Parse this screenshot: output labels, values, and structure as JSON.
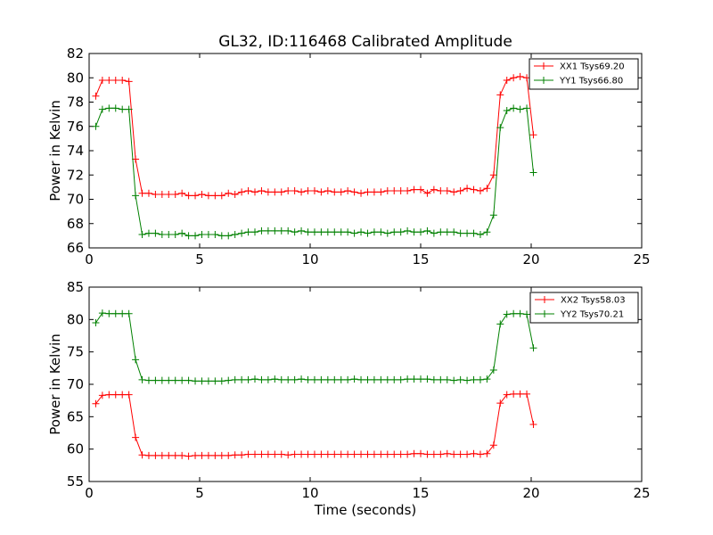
{
  "chart_data": [
    {
      "type": "line",
      "title": "GL32, ID:116468 Calibrated Amplitude",
      "xlabel": "",
      "ylabel": "Power in Kelvin",
      "xlim": [
        0,
        25
      ],
      "ylim": [
        66,
        82
      ],
      "xticks": [
        0,
        5,
        10,
        15,
        20,
        25
      ],
      "yticks": [
        66,
        68,
        70,
        72,
        74,
        76,
        78,
        80,
        82
      ],
      "grid": false,
      "legend_position": "top-right",
      "marker": "+",
      "series": [
        {
          "name": "XX1 Tsys69.20",
          "color": "#ff0000",
          "x": [
            0.3,
            0.6,
            0.9,
            1.2,
            1.5,
            1.8,
            2.1,
            2.4,
            2.7,
            3.0,
            3.3,
            3.6,
            3.9,
            4.2,
            4.5,
            4.8,
            5.1,
            5.4,
            5.7,
            6.0,
            6.3,
            6.6,
            6.9,
            7.2,
            7.5,
            7.8,
            8.1,
            8.4,
            8.7,
            9.0,
            9.3,
            9.6,
            9.9,
            10.2,
            10.5,
            10.8,
            11.1,
            11.4,
            11.7,
            12.0,
            12.3,
            12.6,
            12.9,
            13.2,
            13.5,
            13.8,
            14.1,
            14.4,
            14.7,
            15.0,
            15.3,
            15.6,
            15.9,
            16.2,
            16.5,
            16.8,
            17.1,
            17.4,
            17.7,
            18.0,
            18.3,
            18.6,
            18.9,
            19.2,
            19.5,
            19.8,
            20.1
          ],
          "y": [
            78.5,
            79.8,
            79.8,
            79.8,
            79.8,
            79.7,
            73.3,
            70.5,
            70.5,
            70.4,
            70.4,
            70.4,
            70.4,
            70.5,
            70.3,
            70.3,
            70.4,
            70.3,
            70.3,
            70.3,
            70.5,
            70.4,
            70.6,
            70.7,
            70.6,
            70.7,
            70.6,
            70.6,
            70.6,
            70.7,
            70.7,
            70.6,
            70.7,
            70.7,
            70.6,
            70.7,
            70.6,
            70.6,
            70.7,
            70.6,
            70.5,
            70.6,
            70.6,
            70.6,
            70.7,
            70.7,
            70.7,
            70.7,
            70.8,
            70.8,
            70.5,
            70.8,
            70.7,
            70.7,
            70.6,
            70.7,
            70.9,
            70.8,
            70.7,
            70.9,
            72.0,
            78.6,
            79.8,
            80.0,
            80.1,
            80.0,
            75.3
          ]
        },
        {
          "name": "YY1 Tsys66.80",
          "color": "#008000",
          "x": [
            0.3,
            0.6,
            0.9,
            1.2,
            1.5,
            1.8,
            2.1,
            2.4,
            2.7,
            3.0,
            3.3,
            3.6,
            3.9,
            4.2,
            4.5,
            4.8,
            5.1,
            5.4,
            5.7,
            6.0,
            6.3,
            6.6,
            6.9,
            7.2,
            7.5,
            7.8,
            8.1,
            8.4,
            8.7,
            9.0,
            9.3,
            9.6,
            9.9,
            10.2,
            10.5,
            10.8,
            11.1,
            11.4,
            11.7,
            12.0,
            12.3,
            12.6,
            12.9,
            13.2,
            13.5,
            13.8,
            14.1,
            14.4,
            14.7,
            15.0,
            15.3,
            15.6,
            15.9,
            16.2,
            16.5,
            16.8,
            17.1,
            17.4,
            17.7,
            18.0,
            18.3,
            18.6,
            18.9,
            19.2,
            19.5,
            19.8,
            20.1
          ],
          "y": [
            76.0,
            77.4,
            77.5,
            77.5,
            77.4,
            77.4,
            70.3,
            67.1,
            67.2,
            67.2,
            67.1,
            67.1,
            67.1,
            67.2,
            67.0,
            67.0,
            67.1,
            67.1,
            67.1,
            67.0,
            67.0,
            67.1,
            67.2,
            67.3,
            67.3,
            67.4,
            67.4,
            67.4,
            67.4,
            67.4,
            67.3,
            67.4,
            67.3,
            67.3,
            67.3,
            67.3,
            67.3,
            67.3,
            67.3,
            67.2,
            67.3,
            67.2,
            67.3,
            67.3,
            67.2,
            67.3,
            67.3,
            67.4,
            67.3,
            67.3,
            67.4,
            67.2,
            67.3,
            67.3,
            67.3,
            67.2,
            67.2,
            67.2,
            67.1,
            67.3,
            68.7,
            75.9,
            77.3,
            77.5,
            77.4,
            77.5,
            72.2
          ]
        }
      ]
    },
    {
      "type": "line",
      "title": "",
      "xlabel": "Time (seconds)",
      "ylabel": "Power in Kelvin",
      "xlim": [
        0,
        25
      ],
      "ylim": [
        55,
        85
      ],
      "xticks": [
        0,
        5,
        10,
        15,
        20,
        25
      ],
      "yticks": [
        55,
        60,
        65,
        70,
        75,
        80,
        85
      ],
      "grid": false,
      "legend_position": "top-right",
      "marker": "+",
      "series": [
        {
          "name": "XX2 Tsys58.03",
          "color": "#ff0000",
          "x": [
            0.3,
            0.6,
            0.9,
            1.2,
            1.5,
            1.8,
            2.1,
            2.4,
            2.7,
            3.0,
            3.3,
            3.6,
            3.9,
            4.2,
            4.5,
            4.8,
            5.1,
            5.4,
            5.7,
            6.0,
            6.3,
            6.6,
            6.9,
            7.2,
            7.5,
            7.8,
            8.1,
            8.4,
            8.7,
            9.0,
            9.3,
            9.6,
            9.9,
            10.2,
            10.5,
            10.8,
            11.1,
            11.4,
            11.7,
            12.0,
            12.3,
            12.6,
            12.9,
            13.2,
            13.5,
            13.8,
            14.1,
            14.4,
            14.7,
            15.0,
            15.3,
            15.6,
            15.9,
            16.2,
            16.5,
            16.8,
            17.1,
            17.4,
            17.7,
            18.0,
            18.3,
            18.6,
            18.9,
            19.2,
            19.5,
            19.8,
            20.1
          ],
          "y": [
            67.0,
            68.3,
            68.4,
            68.4,
            68.4,
            68.4,
            61.8,
            59.1,
            59.0,
            59.0,
            59.0,
            59.0,
            59.0,
            59.0,
            58.9,
            59.0,
            59.0,
            59.0,
            59.0,
            59.0,
            59.0,
            59.1,
            59.1,
            59.2,
            59.2,
            59.2,
            59.2,
            59.2,
            59.2,
            59.1,
            59.2,
            59.2,
            59.2,
            59.2,
            59.2,
            59.2,
            59.2,
            59.2,
            59.2,
            59.2,
            59.2,
            59.2,
            59.2,
            59.2,
            59.2,
            59.2,
            59.2,
            59.2,
            59.3,
            59.3,
            59.2,
            59.2,
            59.2,
            59.3,
            59.2,
            59.2,
            59.2,
            59.3,
            59.2,
            59.3,
            60.6,
            67.1,
            68.4,
            68.5,
            68.5,
            68.5,
            63.8
          ]
        },
        {
          "name": "YY2 Tsys70.21",
          "color": "#008000",
          "x": [
            0.3,
            0.6,
            0.9,
            1.2,
            1.5,
            1.8,
            2.1,
            2.4,
            2.7,
            3.0,
            3.3,
            3.6,
            3.9,
            4.2,
            4.5,
            4.8,
            5.1,
            5.4,
            5.7,
            6.0,
            6.3,
            6.6,
            6.9,
            7.2,
            7.5,
            7.8,
            8.1,
            8.4,
            8.7,
            9.0,
            9.3,
            9.6,
            9.9,
            10.2,
            10.5,
            10.8,
            11.1,
            11.4,
            11.7,
            12.0,
            12.3,
            12.6,
            12.9,
            13.2,
            13.5,
            13.8,
            14.1,
            14.4,
            14.7,
            15.0,
            15.3,
            15.6,
            15.9,
            16.2,
            16.5,
            16.8,
            17.1,
            17.4,
            17.7,
            18.0,
            18.3,
            18.6,
            18.9,
            19.2,
            19.5,
            19.8,
            20.1
          ],
          "y": [
            79.5,
            81.0,
            80.9,
            80.9,
            80.9,
            80.9,
            73.8,
            70.7,
            70.6,
            70.6,
            70.6,
            70.6,
            70.6,
            70.6,
            70.6,
            70.5,
            70.5,
            70.5,
            70.5,
            70.5,
            70.6,
            70.7,
            70.7,
            70.7,
            70.8,
            70.7,
            70.7,
            70.8,
            70.7,
            70.7,
            70.7,
            70.8,
            70.7,
            70.7,
            70.7,
            70.7,
            70.7,
            70.7,
            70.7,
            70.8,
            70.7,
            70.7,
            70.7,
            70.7,
            70.7,
            70.7,
            70.7,
            70.8,
            70.8,
            70.8,
            70.8,
            70.7,
            70.7,
            70.7,
            70.6,
            70.7,
            70.6,
            70.7,
            70.7,
            70.8,
            72.2,
            79.3,
            80.8,
            80.9,
            80.9,
            80.8,
            75.6
          ]
        }
      ]
    }
  ]
}
